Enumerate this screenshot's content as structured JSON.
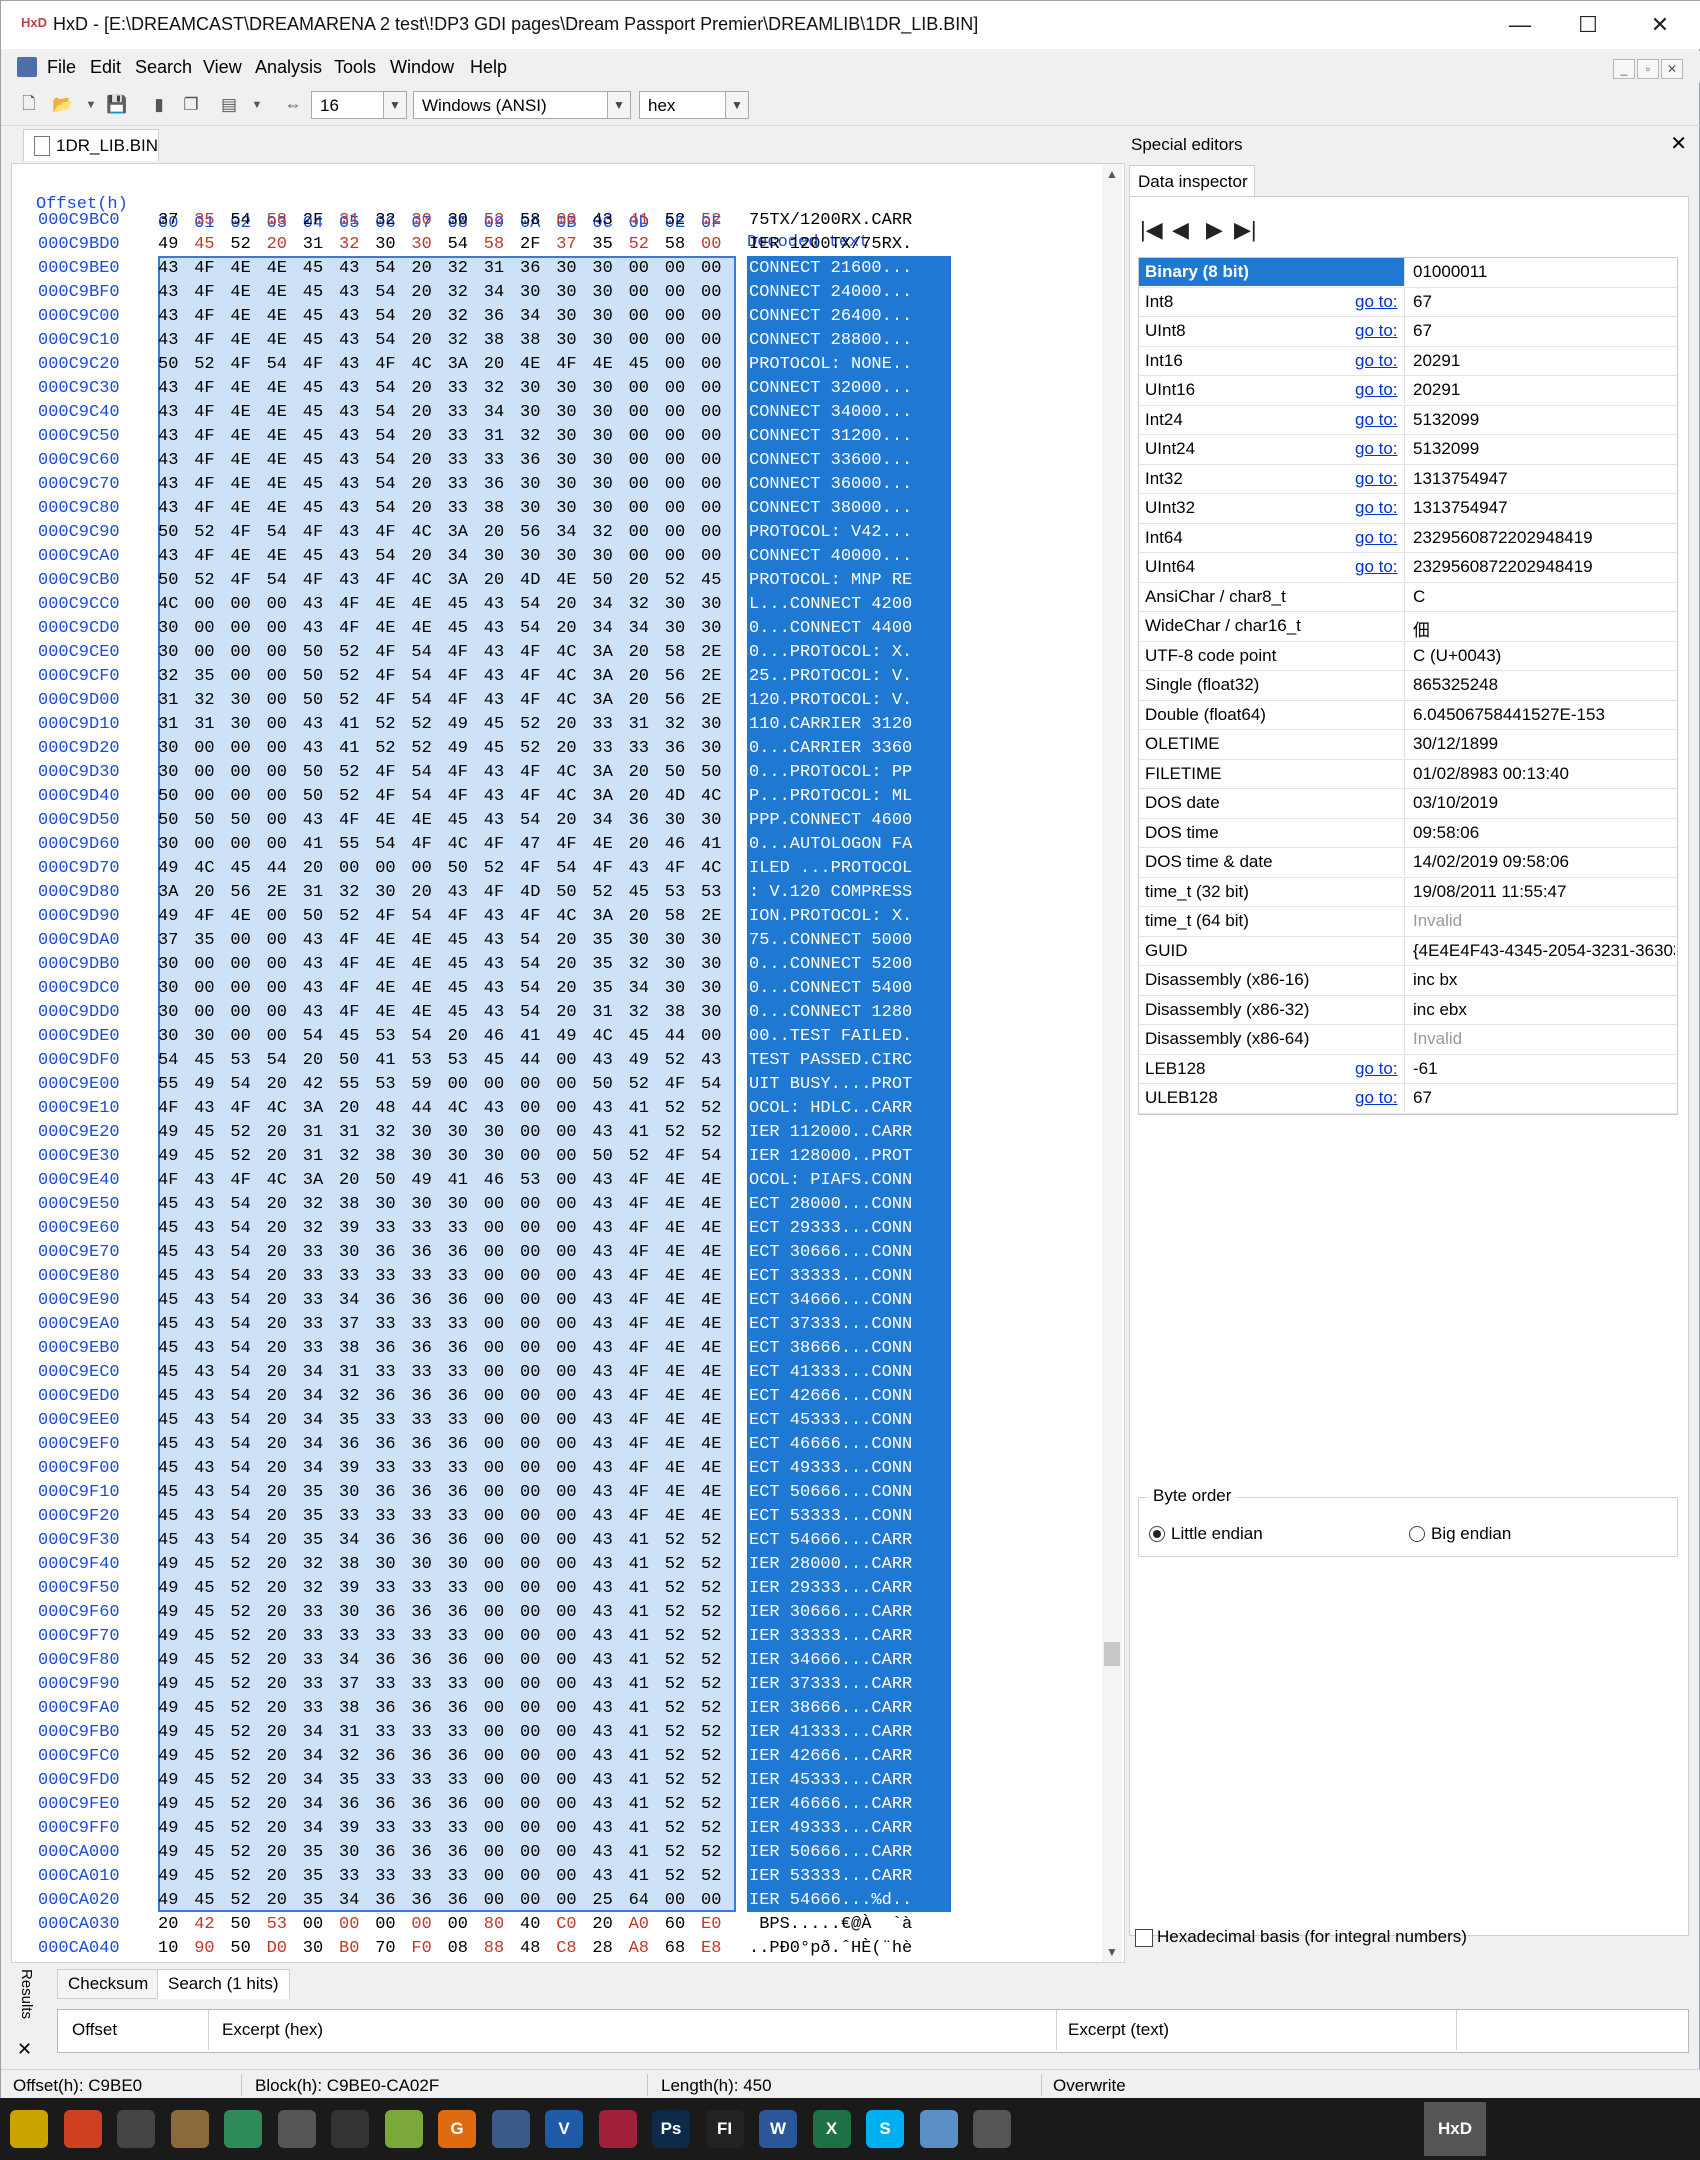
{
  "app": {
    "logo_text": "HxD",
    "title": "HxD - [E:\\DREAMCAST\\DREAMARENA 2 test\\!DP3 GDI pages\\Dream Passport Premier\\DREAMLIB\\1DR_LIB.BIN]",
    "window_controls": {
      "minimize": "—",
      "maximize": "☐",
      "close": "✕"
    }
  },
  "menu": [
    "File",
    "Edit",
    "Search",
    "View",
    "Analysis",
    "Tools",
    "Window",
    "Help"
  ],
  "toolbar": {
    "bytes_per_row": "16",
    "charset": "Windows (ANSI)",
    "offset_base": "hex",
    "icons": [
      "new-file-icon",
      "open-folder-icon",
      "save-icon",
      "close-icon",
      "copy-icon",
      "properties-icon",
      "columns-icon"
    ]
  },
  "doc_tab": "1DR_LIB.BIN",
  "hex": {
    "header_offset": "Offset(h)",
    "header_cols": [
      "00",
      "01",
      "02",
      "03",
      "04",
      "05",
      "06",
      "07",
      "08",
      "09",
      "0A",
      "0B",
      "0C",
      "0D",
      "0E",
      "0F"
    ],
    "header_decoded": "Decoded text",
    "colors": {
      "offset": "#1c4bdc",
      "byte_alt": "#c0392b",
      "selection_hex": "#cde1f7",
      "selection_text": "#1f78d1"
    },
    "rows": [
      {
        "off": "000C9BC0",
        "b": "37 35 54 58 2F 31 32 30 30 52 58 00 43 41 52 52",
        "t": "75TX/1200RX.CARR",
        "sel": false
      },
      {
        "off": "000C9BD0",
        "b": "49 45 52 20 31 32 30 30 54 58 2F 37 35 52 58 00",
        "t": "IER 1200TX/75RX.",
        "sel": false
      },
      {
        "off": "000C9BE0",
        "b": "43 4F 4E 4E 45 43 54 20 32 31 36 30 30 00 00 00",
        "t": "CONNECT 21600...",
        "sel": true
      },
      {
        "off": "000C9BF0",
        "b": "43 4F 4E 4E 45 43 54 20 32 34 30 30 30 00 00 00",
        "t": "CONNECT 24000...",
        "sel": true
      },
      {
        "off": "000C9C00",
        "b": "43 4F 4E 4E 45 43 54 20 32 36 34 30 30 00 00 00",
        "t": "CONNECT 26400...",
        "sel": true
      },
      {
        "off": "000C9C10",
        "b": "43 4F 4E 4E 45 43 54 20 32 38 38 30 30 00 00 00",
        "t": "CONNECT 28800...",
        "sel": true
      },
      {
        "off": "000C9C20",
        "b": "50 52 4F 54 4F 43 4F 4C 3A 20 4E 4F 4E 45 00 00",
        "t": "PROTOCOL: NONE..",
        "sel": true
      },
      {
        "off": "000C9C30",
        "b": "43 4F 4E 4E 45 43 54 20 33 32 30 30 30 00 00 00",
        "t": "CONNECT 32000...",
        "sel": true
      },
      {
        "off": "000C9C40",
        "b": "43 4F 4E 4E 45 43 54 20 33 34 30 30 30 00 00 00",
        "t": "CONNECT 34000...",
        "sel": true
      },
      {
        "off": "000C9C50",
        "b": "43 4F 4E 4E 45 43 54 20 33 31 32 30 30 00 00 00",
        "t": "CONNECT 31200...",
        "sel": true
      },
      {
        "off": "000C9C60",
        "b": "43 4F 4E 4E 45 43 54 20 33 33 36 30 30 00 00 00",
        "t": "CONNECT 33600...",
        "sel": true
      },
      {
        "off": "000C9C70",
        "b": "43 4F 4E 4E 45 43 54 20 33 36 30 30 30 00 00 00",
        "t": "CONNECT 36000...",
        "sel": true
      },
      {
        "off": "000C9C80",
        "b": "43 4F 4E 4E 45 43 54 20 33 38 30 30 30 00 00 00",
        "t": "CONNECT 38000...",
        "sel": true
      },
      {
        "off": "000C9C90",
        "b": "50 52 4F 54 4F 43 4F 4C 3A 20 56 34 32 00 00 00",
        "t": "PROTOCOL: V42...",
        "sel": true
      },
      {
        "off": "000C9CA0",
        "b": "43 4F 4E 4E 45 43 54 20 34 30 30 30 30 00 00 00",
        "t": "CONNECT 40000...",
        "sel": true
      },
      {
        "off": "000C9CB0",
        "b": "50 52 4F 54 4F 43 4F 4C 3A 20 4D 4E 50 20 52 45",
        "t": "PROTOCOL: MNP RE",
        "sel": true
      },
      {
        "off": "000C9CC0",
        "b": "4C 00 00 00 43 4F 4E 4E 45 43 54 20 34 32 30 30",
        "t": "L...CONNECT 4200",
        "sel": true
      },
      {
        "off": "000C9CD0",
        "b": "30 00 00 00 43 4F 4E 4E 45 43 54 20 34 34 30 30",
        "t": "0...CONNECT 4400",
        "sel": true
      },
      {
        "off": "000C9CE0",
        "b": "30 00 00 00 50 52 4F 54 4F 43 4F 4C 3A 20 58 2E",
        "t": "0...PROTOCOL: X.",
        "sel": true
      },
      {
        "off": "000C9CF0",
        "b": "32 35 00 00 50 52 4F 54 4F 43 4F 4C 3A 20 56 2E",
        "t": "25..PROTOCOL: V.",
        "sel": true
      },
      {
        "off": "000C9D00",
        "b": "31 32 30 00 50 52 4F 54 4F 43 4F 4C 3A 20 56 2E",
        "t": "120.PROTOCOL: V.",
        "sel": true
      },
      {
        "off": "000C9D10",
        "b": "31 31 30 00 43 41 52 52 49 45 52 20 33 31 32 30",
        "t": "110.CARRIER 3120",
        "sel": true
      },
      {
        "off": "000C9D20",
        "b": "30 00 00 00 43 41 52 52 49 45 52 20 33 33 36 30",
        "t": "0...CARRIER 3360",
        "sel": true
      },
      {
        "off": "000C9D30",
        "b": "30 00 00 00 50 52 4F 54 4F 43 4F 4C 3A 20 50 50",
        "t": "0...PROTOCOL: PP",
        "sel": true
      },
      {
        "off": "000C9D40",
        "b": "50 00 00 00 50 52 4F 54 4F 43 4F 4C 3A 20 4D 4C",
        "t": "P...PROTOCOL: ML",
        "sel": true
      },
      {
        "off": "000C9D50",
        "b": "50 50 50 00 43 4F 4E 4E 45 43 54 20 34 36 30 30",
        "t": "PPP.CONNECT 4600",
        "sel": true
      },
      {
        "off": "000C9D60",
        "b": "30 00 00 00 41 55 54 4F 4C 4F 47 4F 4E 20 46 41",
        "t": "0...AUTOLOGON FA",
        "sel": true
      },
      {
        "off": "000C9D70",
        "b": "49 4C 45 44 20 00 00 00 50 52 4F 54 4F 43 4F 4C",
        "t": "ILED ...PROTOCOL",
        "sel": true
      },
      {
        "off": "000C9D80",
        "b": "3A 20 56 2E 31 32 30 20 43 4F 4D 50 52 45 53 53",
        "t": ": V.120 COMPRESS",
        "sel": true
      },
      {
        "off": "000C9D90",
        "b": "49 4F 4E 00 50 52 4F 54 4F 43 4F 4C 3A 20 58 2E",
        "t": "ION.PROTOCOL: X.",
        "sel": true
      },
      {
        "off": "000C9DA0",
        "b": "37 35 00 00 43 4F 4E 4E 45 43 54 20 35 30 30 30",
        "t": "75..CONNECT 5000",
        "sel": true
      },
      {
        "off": "000C9DB0",
        "b": "30 00 00 00 43 4F 4E 4E 45 43 54 20 35 32 30 30",
        "t": "0...CONNECT 5200",
        "sel": true
      },
      {
        "off": "000C9DC0",
        "b": "30 00 00 00 43 4F 4E 4E 45 43 54 20 35 34 30 30",
        "t": "0...CONNECT 5400",
        "sel": true
      },
      {
        "off": "000C9DD0",
        "b": "30 00 00 00 43 4F 4E 4E 45 43 54 20 31 32 38 30",
        "t": "0...CONNECT 1280",
        "sel": true
      },
      {
        "off": "000C9DE0",
        "b": "30 30 00 00 54 45 53 54 20 46 41 49 4C 45 44 00",
        "t": "00..TEST FAILED.",
        "sel": true
      },
      {
        "off": "000C9DF0",
        "b": "54 45 53 54 20 50 41 53 53 45 44 00 43 49 52 43",
        "t": "TEST PASSED.CIRC",
        "sel": true
      },
      {
        "off": "000C9E00",
        "b": "55 49 54 20 42 55 53 59 00 00 00 00 50 52 4F 54",
        "t": "UIT BUSY....PROT",
        "sel": true
      },
      {
        "off": "000C9E10",
        "b": "4F 43 4F 4C 3A 20 48 44 4C 43 00 00 43 41 52 52",
        "t": "OCOL: HDLC..CARR",
        "sel": true
      },
      {
        "off": "000C9E20",
        "b": "49 45 52 20 31 31 32 30 30 30 00 00 43 41 52 52",
        "t": "IER 112000..CARR",
        "sel": true
      },
      {
        "off": "000C9E30",
        "b": "49 45 52 20 31 32 38 30 30 30 00 00 50 52 4F 54",
        "t": "IER 128000..PROT",
        "sel": true
      },
      {
        "off": "000C9E40",
        "b": "4F 43 4F 4C 3A 20 50 49 41 46 53 00 43 4F 4E 4E",
        "t": "OCOL: PIAFS.CONN",
        "sel": true
      },
      {
        "off": "000C9E50",
        "b": "45 43 54 20 32 38 30 30 30 00 00 00 43 4F 4E 4E",
        "t": "ECT 28000...CONN",
        "sel": true
      },
      {
        "off": "000C9E60",
        "b": "45 43 54 20 32 39 33 33 33 00 00 00 43 4F 4E 4E",
        "t": "ECT 29333...CONN",
        "sel": true
      },
      {
        "off": "000C9E70",
        "b": "45 43 54 20 33 30 36 36 36 00 00 00 43 4F 4E 4E",
        "t": "ECT 30666...CONN",
        "sel": true
      },
      {
        "off": "000C9E80",
        "b": "45 43 54 20 33 33 33 33 33 00 00 00 43 4F 4E 4E",
        "t": "ECT 33333...CONN",
        "sel": true
      },
      {
        "off": "000C9E90",
        "b": "45 43 54 20 33 34 36 36 36 00 00 00 43 4F 4E 4E",
        "t": "ECT 34666...CONN",
        "sel": true
      },
      {
        "off": "000C9EA0",
        "b": "45 43 54 20 33 37 33 33 33 00 00 00 43 4F 4E 4E",
        "t": "ECT 37333...CONN",
        "sel": true
      },
      {
        "off": "000C9EB0",
        "b": "45 43 54 20 33 38 36 36 36 00 00 00 43 4F 4E 4E",
        "t": "ECT 38666...CONN",
        "sel": true
      },
      {
        "off": "000C9EC0",
        "b": "45 43 54 20 34 31 33 33 33 00 00 00 43 4F 4E 4E",
        "t": "ECT 41333...CONN",
        "sel": true
      },
      {
        "off": "000C9ED0",
        "b": "45 43 54 20 34 32 36 36 36 00 00 00 43 4F 4E 4E",
        "t": "ECT 42666...CONN",
        "sel": true
      },
      {
        "off": "000C9EE0",
        "b": "45 43 54 20 34 35 33 33 33 00 00 00 43 4F 4E 4E",
        "t": "ECT 45333...CONN",
        "sel": true
      },
      {
        "off": "000C9EF0",
        "b": "45 43 54 20 34 36 36 36 36 00 00 00 43 4F 4E 4E",
        "t": "ECT 46666...CONN",
        "sel": true
      },
      {
        "off": "000C9F00",
        "b": "45 43 54 20 34 39 33 33 33 00 00 00 43 4F 4E 4E",
        "t": "ECT 49333...CONN",
        "sel": true
      },
      {
        "off": "000C9F10",
        "b": "45 43 54 20 35 30 36 36 36 00 00 00 43 4F 4E 4E",
        "t": "ECT 50666...CONN",
        "sel": true
      },
      {
        "off": "000C9F20",
        "b": "45 43 54 20 35 33 33 33 33 00 00 00 43 4F 4E 4E",
        "t": "ECT 53333...CONN",
        "sel": true
      },
      {
        "off": "000C9F30",
        "b": "45 43 54 20 35 34 36 36 36 00 00 00 43 41 52 52",
        "t": "ECT 54666...CARR",
        "sel": true
      },
      {
        "off": "000C9F40",
        "b": "49 45 52 20 32 38 30 30 30 00 00 00 43 41 52 52",
        "t": "IER 28000...CARR",
        "sel": true
      },
      {
        "off": "000C9F50",
        "b": "49 45 52 20 32 39 33 33 33 00 00 00 43 41 52 52",
        "t": "IER 29333...CARR",
        "sel": true
      },
      {
        "off": "000C9F60",
        "b": "49 45 52 20 33 30 36 36 36 00 00 00 43 41 52 52",
        "t": "IER 30666...CARR",
        "sel": true
      },
      {
        "off": "000C9F70",
        "b": "49 45 52 20 33 33 33 33 33 00 00 00 43 41 52 52",
        "t": "IER 33333...CARR",
        "sel": true
      },
      {
        "off": "000C9F80",
        "b": "49 45 52 20 33 34 36 36 36 00 00 00 43 41 52 52",
        "t": "IER 34666...CARR",
        "sel": true
      },
      {
        "off": "000C9F90",
        "b": "49 45 52 20 33 37 33 33 33 00 00 00 43 41 52 52",
        "t": "IER 37333...CARR",
        "sel": true
      },
      {
        "off": "000C9FA0",
        "b": "49 45 52 20 33 38 36 36 36 00 00 00 43 41 52 52",
        "t": "IER 38666...CARR",
        "sel": true
      },
      {
        "off": "000C9FB0",
        "b": "49 45 52 20 34 31 33 33 33 00 00 00 43 41 52 52",
        "t": "IER 41333...CARR",
        "sel": true
      },
      {
        "off": "000C9FC0",
        "b": "49 45 52 20 34 32 36 36 36 00 00 00 43 41 52 52",
        "t": "IER 42666...CARR",
        "sel": true
      },
      {
        "off": "000C9FD0",
        "b": "49 45 52 20 34 35 33 33 33 00 00 00 43 41 52 52",
        "t": "IER 45333...CARR",
        "sel": true
      },
      {
        "off": "000C9FE0",
        "b": "49 45 52 20 34 36 36 36 36 00 00 00 43 41 52 52",
        "t": "IER 46666...CARR",
        "sel": true
      },
      {
        "off": "000C9FF0",
        "b": "49 45 52 20 34 39 33 33 33 00 00 00 43 41 52 52",
        "t": "IER 49333...CARR",
        "sel": true
      },
      {
        "off": "000CA000",
        "b": "49 45 52 20 35 30 36 36 36 00 00 00 43 41 52 52",
        "t": "IER 50666...CARR",
        "sel": true
      },
      {
        "off": "000CA010",
        "b": "49 45 52 20 35 33 33 33 33 00 00 00 43 41 52 52",
        "t": "IER 53333...CARR",
        "sel": true
      },
      {
        "off": "000CA020",
        "b": "49 45 52 20 35 34 36 36 36 00 00 00 25 64 00 00",
        "t": "IER 54666...%d..",
        "sel": true
      },
      {
        "off": "000CA030",
        "b": "20 42 50 53 00 00 00 00 00 80 40 C0 20 A0 60 E0",
        "t": " BPS.....€@À  `à",
        "sel": false
      },
      {
        "off": "000CA040",
        "b": "10 90 50 D0 30 B0 70 F0 08 88 48 C8 28 A8 68 E8",
        "t": "..PÐ0°pð.ˆHÈ(¨hè",
        "sel": false
      }
    ]
  },
  "special_editors": {
    "title": "Special editors",
    "close": "✕",
    "tab": "Data inspector",
    "nav": [
      "|◀",
      "◀",
      "▶",
      "▶|"
    ],
    "goto_label": "go to:",
    "rows": [
      {
        "name": "Binary (8 bit)",
        "goto": false,
        "value": "01000011",
        "selected": true
      },
      {
        "name": "Int8",
        "goto": true,
        "value": "67"
      },
      {
        "name": "UInt8",
        "goto": true,
        "value": "67"
      },
      {
        "name": "Int16",
        "goto": true,
        "value": "20291"
      },
      {
        "name": "UInt16",
        "goto": true,
        "value": "20291"
      },
      {
        "name": "Int24",
        "goto": true,
        "value": "5132099"
      },
      {
        "name": "UInt24",
        "goto": true,
        "value": "5132099"
      },
      {
        "name": "Int32",
        "goto": true,
        "value": "1313754947"
      },
      {
        "name": "UInt32",
        "goto": true,
        "value": "1313754947"
      },
      {
        "name": "Int64",
        "goto": true,
        "value": "2329560872202948419"
      },
      {
        "name": "UInt64",
        "goto": true,
        "value": "2329560872202948419"
      },
      {
        "name": "AnsiChar / char8_t",
        "goto": false,
        "value": "C"
      },
      {
        "name": "WideChar / char16_t",
        "goto": false,
        "value": "佃"
      },
      {
        "name": "UTF-8 code point",
        "goto": false,
        "value": "C (U+0043)"
      },
      {
        "name": "Single (float32)",
        "goto": false,
        "value": "865325248"
      },
      {
        "name": "Double (float64)",
        "goto": false,
        "value": "6.04506758441527E-153"
      },
      {
        "name": "OLETIME",
        "goto": false,
        "value": "30/12/1899"
      },
      {
        "name": "FILETIME",
        "goto": false,
        "value": "01/02/8983 00:13:40"
      },
      {
        "name": "DOS date",
        "goto": false,
        "value": "03/10/2019"
      },
      {
        "name": "DOS time",
        "goto": false,
        "value": "09:58:06"
      },
      {
        "name": "DOS time & date",
        "goto": false,
        "value": "14/02/2019 09:58:06"
      },
      {
        "name": "time_t (32 bit)",
        "goto": false,
        "value": "19/08/2011 11:55:47"
      },
      {
        "name": "time_t (64 bit)",
        "goto": false,
        "value": "Invalid",
        "invalid": true
      },
      {
        "name": "GUID",
        "goto": false,
        "value": "{4E4E4F43-4345-2054-3231-36303"
      },
      {
        "name": "Disassembly (x86-16)",
        "goto": false,
        "value": "inc bx"
      },
      {
        "name": "Disassembly (x86-32)",
        "goto": false,
        "value": "inc ebx"
      },
      {
        "name": "Disassembly (x86-64)",
        "goto": false,
        "value": "Invalid",
        "invalid": true
      },
      {
        "name": "LEB128",
        "goto": true,
        "value": "-61"
      },
      {
        "name": "ULEB128",
        "goto": true,
        "value": "67"
      }
    ],
    "byte_order": {
      "legend": "Byte order",
      "little": "Little endian",
      "big": "Big endian",
      "selected": "little"
    },
    "hex_basis": "Hexadecimal basis (for integral numbers)"
  },
  "results": {
    "label": "Results",
    "tabs": [
      "Checksum",
      "Search (1 hits)"
    ],
    "active_tab": 1,
    "columns": [
      "Offset",
      "Excerpt (hex)",
      "Excerpt (text)"
    ]
  },
  "status": {
    "offset": "Offset(h): C9BE0",
    "block": "Block(h): C9BE0-CA02F",
    "length": "Length(h): 450",
    "mode": "Overwrite"
  },
  "taskbar": [
    {
      "name": "app-1-icon",
      "label": "",
      "color": "#c9a400"
    },
    {
      "name": "app-2-icon",
      "label": "",
      "color": "#d04020"
    },
    {
      "name": "app-3-icon",
      "label": "",
      "color": "#444"
    },
    {
      "name": "app-4-icon",
      "label": "",
      "color": "#8a6a3a"
    },
    {
      "name": "app-5-icon",
      "label": "",
      "color": "#2e8b57"
    },
    {
      "name": "app-6-icon",
      "label": "",
      "color": "#555"
    },
    {
      "name": "app-7-icon",
      "label": "",
      "color": "#333"
    },
    {
      "name": "app-8-icon",
      "label": "",
      "color": "#7aa83a"
    },
    {
      "name": "app-9-icon",
      "label": "G",
      "color": "#e06a10"
    },
    {
      "name": "app-10-icon",
      "label": "",
      "color": "#3a5a8a"
    },
    {
      "name": "app-11-icon",
      "label": "V",
      "color": "#1e5aa8"
    },
    {
      "name": "app-12-icon",
      "label": "",
      "color": "#a0203a"
    },
    {
      "name": "photoshop-icon",
      "label": "Ps",
      "color": "#0e2a4a"
    },
    {
      "name": "app-14-icon",
      "label": "FI",
      "color": "#222"
    },
    {
      "name": "word-icon",
      "label": "W",
      "color": "#2b579a"
    },
    {
      "name": "excel-icon",
      "label": "X",
      "color": "#1e7145"
    },
    {
      "name": "skype-icon",
      "label": "S",
      "color": "#00aff0"
    },
    {
      "name": "app-18-icon",
      "label": "",
      "color": "#5b8fc7"
    },
    {
      "name": "calculator-icon",
      "label": "",
      "color": "#555"
    },
    {
      "name": "hxd-icon",
      "label": "HxD",
      "color": "#666",
      "active": true
    }
  ]
}
